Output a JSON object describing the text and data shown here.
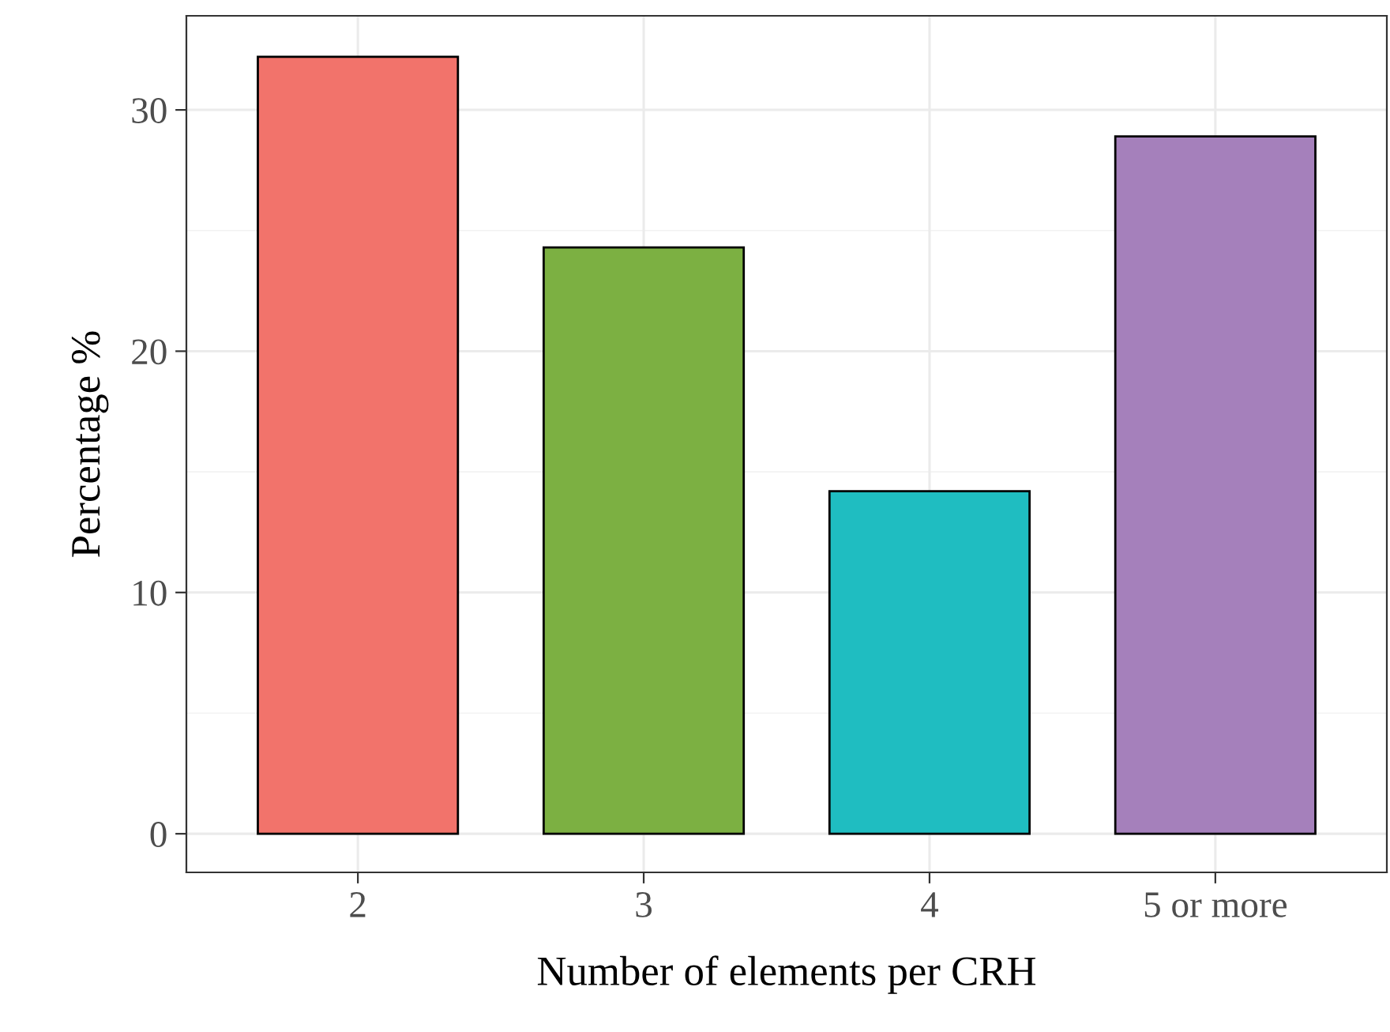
{
  "chart_data": {
    "type": "bar",
    "xlabel": "Number of elements per CRH",
    "ylabel": "Percentage %",
    "categories": [
      "2",
      "3",
      "4",
      "5 or more"
    ],
    "values": [
      32.2,
      24.3,
      14.2,
      28.9
    ],
    "colors": [
      "#f2736b",
      "#7cb042",
      "#1fbdc1",
      "#a580bb"
    ],
    "ylim": [
      -1.6,
      33.9
    ],
    "yticks": [
      0,
      10,
      20,
      30
    ],
    "grid": true
  }
}
